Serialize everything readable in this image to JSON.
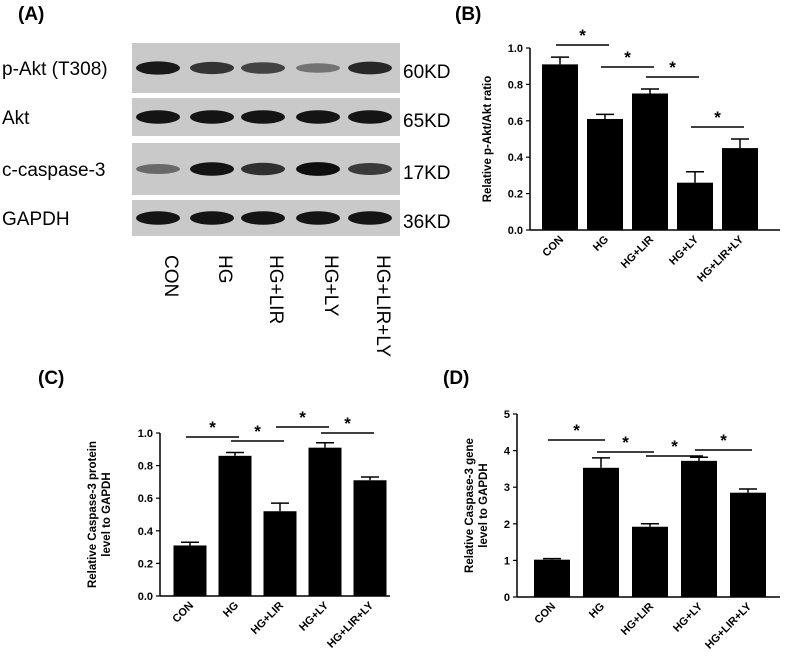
{
  "panels": {
    "A": "(A)",
    "B": "(B)",
    "C": "(C)",
    "D": "(D)"
  },
  "blot": {
    "rows": [
      {
        "label": "p-Akt (T308)",
        "kd": "60KD",
        "intensities": [
          0.92,
          0.78,
          0.7,
          0.45,
          0.85
        ]
      },
      {
        "label": "Akt",
        "kd": "65KD",
        "intensities": [
          0.95,
          0.95,
          0.95,
          0.95,
          0.95
        ]
      },
      {
        "label": "c-caspase-3",
        "kd": "17KD",
        "intensities": [
          0.5,
          0.95,
          0.8,
          0.98,
          0.75
        ]
      },
      {
        "label": "GAPDH",
        "kd": "36KD",
        "intensities": [
          0.95,
          0.95,
          0.95,
          0.95,
          0.95
        ]
      }
    ],
    "lanes": [
      "CON",
      "HG",
      "HG+LIR",
      "HG+LY",
      "HG+LIR+LY"
    ]
  },
  "chart_data": [
    {
      "panel": "B",
      "type": "bar",
      "categories": [
        "CON",
        "HG",
        "HG+LIR",
        "HG+LY",
        "HG+LIR+LY"
      ],
      "values": [
        0.91,
        0.61,
        0.75,
        0.26,
        0.45
      ],
      "errors": [
        0.04,
        0.025,
        0.025,
        0.06,
        0.05
      ],
      "ylabel": "Relative p-Akt/Akt ratio",
      "ylim": [
        0,
        1.0
      ],
      "yticks": [
        "0.0",
        "0.2",
        "0.4",
        "0.6",
        "0.8",
        "1.0"
      ],
      "significance": [
        {
          "from": 0,
          "to": 1,
          "label": "*"
        },
        {
          "from": 1,
          "to": 2,
          "label": "*"
        },
        {
          "from": 2,
          "to": 3,
          "label": "*"
        },
        {
          "from": 3,
          "to": 4,
          "label": "*"
        }
      ]
    },
    {
      "panel": "C",
      "type": "bar",
      "categories": [
        "CON",
        "HG",
        "HG+LIR",
        "HG+LY",
        "HG+LIR+LY"
      ],
      "values": [
        0.31,
        0.86,
        0.52,
        0.91,
        0.71
      ],
      "errors": [
        0.02,
        0.02,
        0.05,
        0.03,
        0.02
      ],
      "ylabel": "Relative Caspase-3 protein level to GAPDH",
      "ylabel_lines": [
        "Relative Caspase-3 protein",
        "level to GAPDH"
      ],
      "ylim": [
        0,
        1.0
      ],
      "yticks": [
        "0.0",
        "0.2",
        "0.4",
        "0.6",
        "0.8",
        "1.0"
      ],
      "significance": [
        {
          "from": 0,
          "to": 1,
          "label": "*"
        },
        {
          "from": 1,
          "to": 2,
          "label": "*"
        },
        {
          "from": 2,
          "to": 3,
          "label": "*"
        },
        {
          "from": 3,
          "to": 4,
          "label": "*"
        }
      ]
    },
    {
      "panel": "D",
      "type": "bar",
      "categories": [
        "CON",
        "HG",
        "HG+LIR",
        "HG+LY",
        "HG+LIR+LY"
      ],
      "values": [
        1.02,
        3.53,
        1.92,
        3.72,
        2.85
      ],
      "errors": [
        0.03,
        0.27,
        0.08,
        0.1,
        0.1
      ],
      "ylabel": "Relative Caspase-3 gene level to GAPDH",
      "ylabel_lines": [
        "Relative Caspase-3 gene",
        "level to GAPDH"
      ],
      "ylim": [
        0,
        5
      ],
      "yticks": [
        "0",
        "1",
        "2",
        "3",
        "4",
        "5"
      ],
      "significance": [
        {
          "from": 0,
          "to": 1,
          "label": "*"
        },
        {
          "from": 1,
          "to": 2,
          "label": "*"
        },
        {
          "from": 2,
          "to": 3,
          "label": "*"
        },
        {
          "from": 3,
          "to": 4,
          "label": "*"
        }
      ]
    }
  ]
}
